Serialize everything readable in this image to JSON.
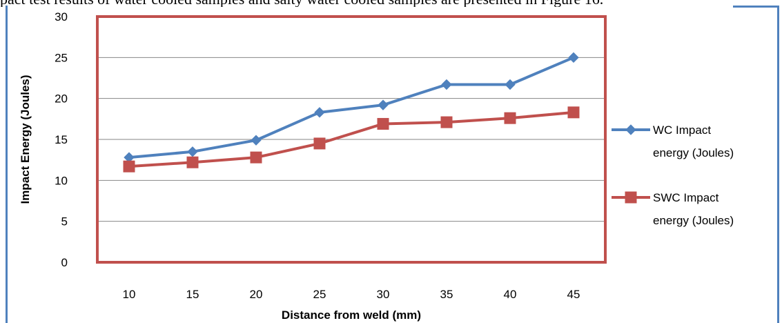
{
  "page": {
    "caption": "pact test results of water cooled samples and salty water cooled samples are presented in Figure 16."
  },
  "colors": {
    "frame": "#4f81bd",
    "plot_border": "#c0504d",
    "grid": "#868686"
  },
  "chart_data": {
    "type": "line",
    "title": "",
    "xlabel": "Distance from weld (mm)",
    "ylabel": "Impact Energy (Joules)",
    "categories": [
      "10",
      "15",
      "20",
      "25",
      "30",
      "35",
      "40",
      "45"
    ],
    "ylim": [
      0,
      30
    ],
    "yticks": [
      "0",
      "5",
      "10",
      "15",
      "20",
      "25",
      "30"
    ],
    "grid": true,
    "legend_position": "right",
    "series": [
      {
        "name": "WC Impact energy (Joules)",
        "legend_lines": [
          "WC Impact",
          "energy (Joules)"
        ],
        "color": "#4f81bd",
        "marker": "diamond",
        "values": [
          12.8,
          13.5,
          14.9,
          18.3,
          19.2,
          21.7,
          21.7,
          25.0
        ]
      },
      {
        "name": "SWC Impact energy (Joules)",
        "legend_lines": [
          "SWC Impact",
          "energy (Joules)"
        ],
        "color": "#c0504d",
        "marker": "square",
        "values": [
          11.7,
          12.2,
          12.8,
          14.5,
          16.9,
          17.1,
          17.6,
          18.3
        ]
      }
    ]
  }
}
